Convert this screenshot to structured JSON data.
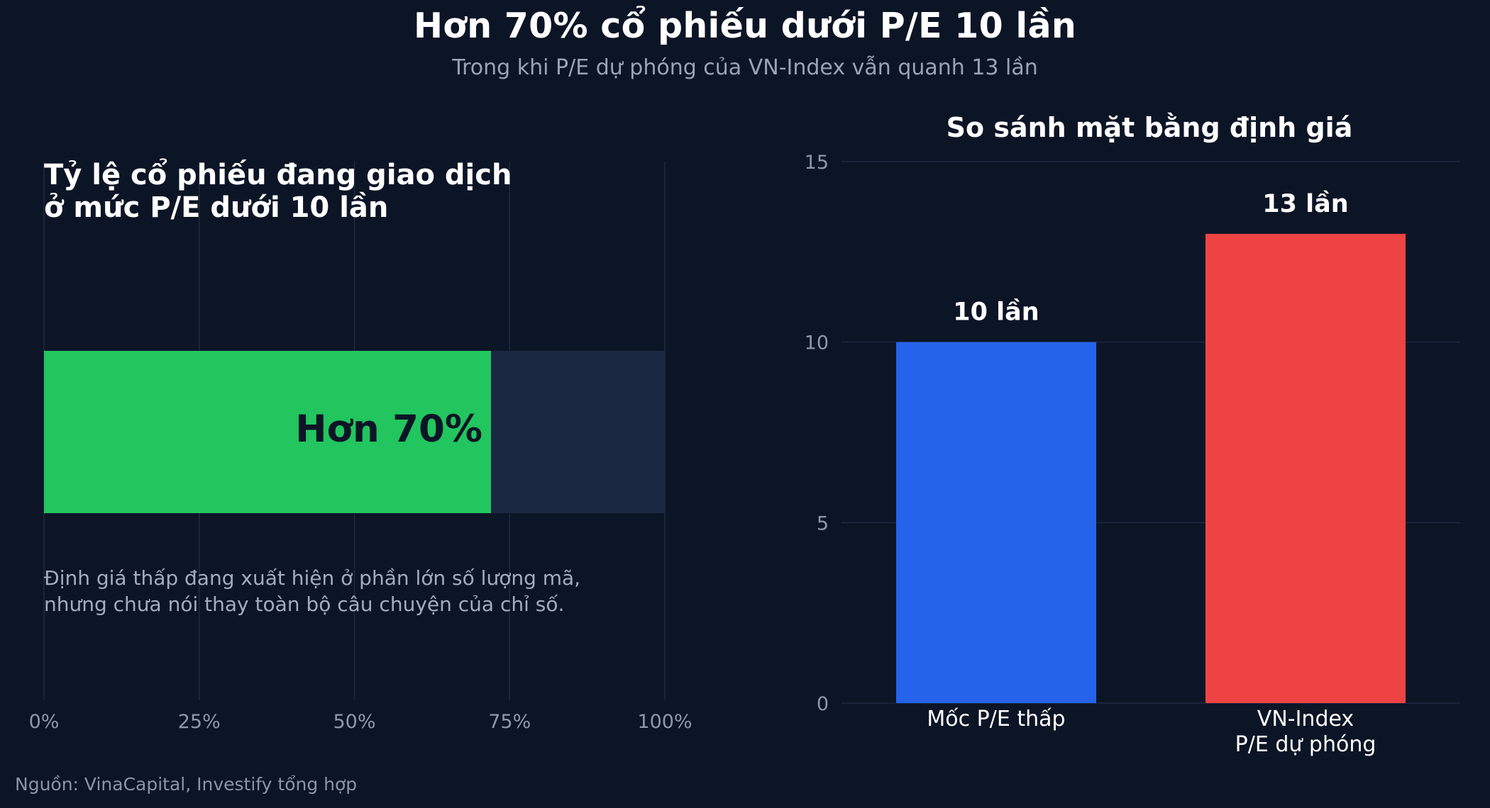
{
  "header": {
    "title": "Hơn 70% cổ phiếu dưới P/E 10 lần",
    "subtitle": "Trong khi P/E dự phóng của VN-Index vẫn quanh 13 lần"
  },
  "left_panel": {
    "title_lines": [
      "Tỷ lệ cổ phiếu đang giao dịch",
      "ở mức P/E dưới 10 lần"
    ],
    "note_lines": [
      "Định giá thấp đang xuất hiện ở phần lớn số lượng mã,",
      "nhưng chưa nói thay toàn bộ câu chuyện của chỉ số."
    ]
  },
  "right_panel": {
    "title": "So sánh mặt bằng định giá"
  },
  "source": "Nguồn: VinaCapital, Investify tổng hợp",
  "colors": {
    "background": "#0c1526",
    "progress_fill": "#22c55e",
    "progress_track": "#1b2842",
    "bar_low_pe": "#2563eb",
    "bar_vnindex": "#ef4444",
    "grid": "#1d2a40"
  },
  "chart_data": [
    {
      "type": "bar",
      "orientation": "horizontal",
      "title": "Tỷ lệ cổ phiếu đang giao dịch ở mức P/E dưới 10 lần",
      "values": [
        72
      ],
      "value_label": "Hơn 70%",
      "xlim": [
        0,
        100
      ],
      "xticks": [
        "0%",
        "25%",
        "50%",
        "75%",
        "100%"
      ],
      "grid": true
    },
    {
      "type": "bar",
      "title": "So sánh mặt bằng định giá",
      "categories": [
        "Mốc P/E thấp",
        "VN-Index\nP/E dự phóng"
      ],
      "values": [
        10,
        13
      ],
      "data_labels": [
        "10 lần",
        "13 lần"
      ],
      "ylim": [
        0,
        15
      ],
      "yticks": [
        "0",
        "5",
        "10",
        "15"
      ],
      "grid": true
    }
  ]
}
